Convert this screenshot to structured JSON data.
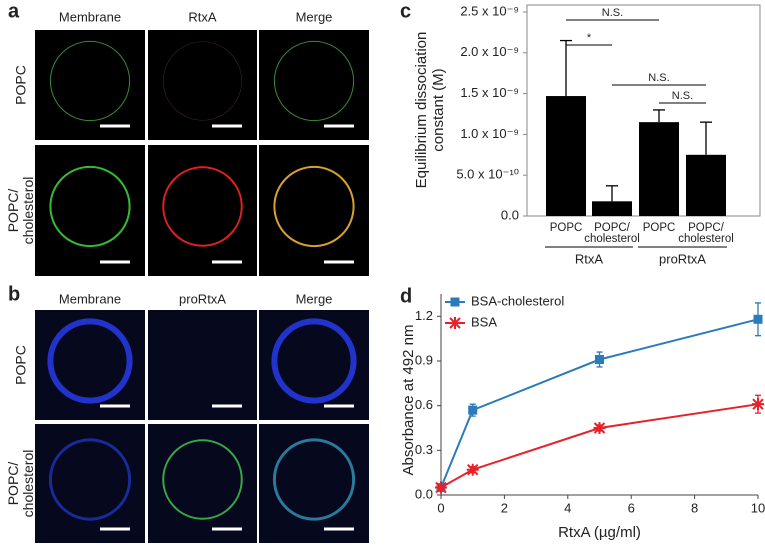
{
  "panels": [
    {
      "label": "a",
      "columns": [
        "Membrane",
        "RtxA",
        "Merge"
      ],
      "rows": [
        [
          "POPC"
        ],
        [
          "POPC/",
          "cholesterol"
        ]
      ]
    },
    {
      "label": "b",
      "columns": [
        "Membrane",
        "proRtxA",
        "Merge"
      ],
      "rows": [
        [
          "POPC"
        ],
        [
          "POPC/",
          "cholesterol"
        ]
      ]
    }
  ],
  "chart_data": [
    {
      "panel_label": "c",
      "type": "bar",
      "y_label": [
        "Equilibrium dissociation",
        "constant (M)"
      ],
      "categories": [
        [
          "POPC"
        ],
        [
          "POPC/",
          "cholesterol"
        ],
        [
          "POPC"
        ],
        [
          "POPC/",
          "cholesterol"
        ]
      ],
      "groups": [
        "RtxA",
        "proRtxA"
      ],
      "values": [
        1.47e-09,
        1.8e-10,
        1.15e-09,
        7.5e-10
      ],
      "errors": [
        6.8e-10,
        1.9e-10,
        1.5e-10,
        4e-10
      ],
      "color": "#000000",
      "ylim": [
        0,
        2.5e-09
      ],
      "yticks": [
        {
          "value": 0,
          "label": "0.0"
        },
        {
          "value": 5e-10,
          "label": "5.0 x 10⁻¹⁰"
        },
        {
          "value": 1e-09,
          "label": "1.0 x 10⁻⁹"
        },
        {
          "value": 1.5e-09,
          "label": "1.5 x 10⁻⁹"
        },
        {
          "value": 2e-09,
          "label": "2.0 x 10⁻⁹"
        },
        {
          "value": 2.5e-09,
          "label": "2.5 x 10⁻⁹"
        }
      ],
      "annotations": [
        "N.S.",
        "*",
        "N.S.",
        "N.S."
      ]
    },
    {
      "panel_label": "d",
      "type": "line",
      "x_label": "RtxA (µg/ml)",
      "y_label": "Absorbance at 492 nm",
      "x": [
        0,
        1,
        5,
        10
      ],
      "series": [
        {
          "name": "BSA-cholesterol",
          "color": "#2b7bba",
          "marker": "square",
          "values": [
            0.05,
            0.57,
            0.91,
            1.18
          ],
          "errors": [
            0.01,
            0.04,
            0.05,
            0.11
          ]
        },
        {
          "name": "BSA",
          "color": "#e8202a",
          "marker": "star",
          "values": [
            0.05,
            0.17,
            0.45,
            0.61
          ],
          "errors": [
            0.01,
            0.02,
            0.02,
            0.06
          ]
        }
      ],
      "xlim": [
        0,
        10
      ],
      "ylim": [
        0,
        1.35
      ],
      "xticks": [
        0,
        2,
        4,
        6,
        8,
        10
      ],
      "yticks": [
        {
          "value": 0,
          "label": "0.0"
        },
        0.3,
        0.6,
        0.9,
        1.2
      ],
      "legend": "upper left"
    }
  ]
}
